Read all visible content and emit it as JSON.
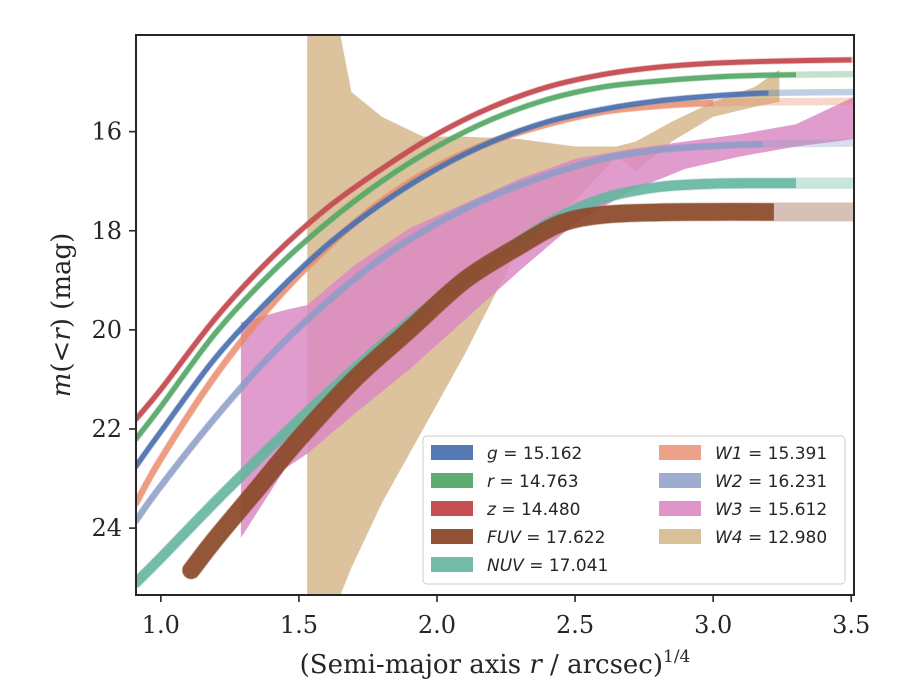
{
  "chart_data": {
    "type": "line",
    "xlabel_main": "(Semi-major axis ",
    "xlabel_r": "r",
    "xlabel_unit": " / arcsec)",
    "xlabel_exp": "1/4",
    "ylabel_main": "m",
    "ylabel_mid": "(<",
    "ylabel_r": "r",
    "ylabel_end": ") (mag)",
    "xlim": [
      0.91,
      3.51
    ],
    "ylim": [
      25.35,
      14.05
    ],
    "y_inverted": true,
    "grid": false,
    "legend_position": "lower-right",
    "xticks": [
      1.0,
      1.5,
      2.0,
      2.5,
      3.0,
      3.5
    ],
    "xtick_labels": [
      "1.0",
      "1.5",
      "2.0",
      "2.5",
      "3.0",
      "3.5"
    ],
    "yticks": [
      16,
      18,
      20,
      22,
      24
    ],
    "ytick_labels": [
      "16",
      "18",
      "20",
      "22",
      "24"
    ],
    "series": [
      {
        "key": "g",
        "label": "g = 15.162",
        "band": "g",
        "value": "15.162",
        "color": "#4c72b0",
        "width": 0.1,
        "opacity": 0.9,
        "x": [
          0.91,
          1.0,
          1.2,
          1.4,
          1.6,
          1.8,
          2.0,
          2.2,
          2.4,
          2.6,
          2.8,
          3.0,
          3.2,
          3.51
        ],
        "y": [
          22.75,
          22.05,
          20.55,
          19.35,
          18.3,
          17.45,
          16.75,
          16.2,
          15.8,
          15.55,
          15.38,
          15.28,
          15.22,
          15.2
        ],
        "x_faint_from": 3.2
      },
      {
        "key": "r",
        "label": "r = 14.763",
        "band": "r",
        "value": "14.763",
        "color": "#55a868",
        "width": 0.1,
        "opacity": 0.9,
        "x": [
          0.91,
          1.0,
          1.2,
          1.4,
          1.6,
          1.8,
          2.0,
          2.2,
          2.4,
          2.6,
          2.8,
          3.0,
          3.2,
          3.51
        ],
        "y": [
          22.2,
          21.55,
          20.05,
          18.85,
          17.85,
          17.0,
          16.3,
          15.75,
          15.35,
          15.1,
          14.98,
          14.9,
          14.86,
          14.84
        ],
        "x_faint_from": 3.3
      },
      {
        "key": "z",
        "label": "z = 14.480",
        "band": "z",
        "value": "14.480",
        "color": "#c44e52",
        "width": 0.1,
        "opacity": 0.95,
        "x": [
          0.91,
          1.0,
          1.2,
          1.4,
          1.6,
          1.8,
          2.0,
          2.2,
          2.4,
          2.6,
          2.8,
          3.0,
          3.2,
          3.51
        ],
        "y": [
          21.8,
          21.2,
          19.75,
          18.55,
          17.55,
          16.75,
          16.05,
          15.5,
          15.1,
          14.85,
          14.7,
          14.62,
          14.58,
          14.55
        ],
        "x_faint_from": 3.5
      },
      {
        "key": "FUV",
        "label": "FUV = 17.622",
        "band": "FUV",
        "value": "17.622",
        "color": "#8c4a2a",
        "width": 0.35,
        "opacity": 0.9,
        "x": [
          1.11,
          1.2,
          1.35,
          1.5,
          1.7,
          1.9,
          2.1,
          2.3,
          2.45,
          2.6,
          2.8,
          3.0,
          3.2,
          3.51
        ],
        "y": [
          24.85,
          24.2,
          23.2,
          22.2,
          21.0,
          20.0,
          19.0,
          18.3,
          17.85,
          17.68,
          17.63,
          17.62,
          17.62,
          17.62
        ],
        "x_faint_from": 3.22
      },
      {
        "key": "NUV",
        "label": "NUV = 17.041",
        "band": "NUV",
        "value": "17.041",
        "color": "#64b5a0",
        "width": 0.2,
        "opacity": 0.85,
        "x": [
          0.91,
          1.0,
          1.2,
          1.4,
          1.6,
          1.8,
          2.0,
          2.2,
          2.4,
          2.6,
          2.8,
          3.0,
          3.2,
          3.51
        ],
        "y": [
          25.1,
          24.6,
          23.45,
          22.35,
          21.3,
          20.3,
          19.4,
          18.6,
          17.85,
          17.35,
          17.12,
          17.05,
          17.04,
          17.04
        ],
        "x_faint_from": 3.3
      },
      {
        "key": "W1",
        "label": "W1 = 15.391",
        "band": "W1",
        "value": "15.391",
        "color": "#e8896a",
        "width": 0.12,
        "opacity": 0.75,
        "x": [
          0.91,
          1.0,
          1.2,
          1.4,
          1.6,
          1.8,
          2.0,
          2.2,
          2.4,
          2.6,
          2.8,
          3.0,
          3.2,
          3.51
        ],
        "y": [
          23.5,
          22.6,
          20.9,
          19.5,
          18.35,
          17.4,
          16.7,
          16.2,
          15.85,
          15.6,
          15.48,
          15.42,
          15.4,
          15.39
        ],
        "x_faint_from": 3.0
      },
      {
        "key": "W2",
        "label": "W2 = 16.231",
        "band": "W2",
        "value": "16.231",
        "color": "#8c9dc7",
        "width": 0.12,
        "opacity": 0.8,
        "x": [
          0.91,
          1.0,
          1.2,
          1.4,
          1.6,
          1.8,
          2.0,
          2.2,
          2.4,
          2.6,
          2.8,
          3.0,
          3.2,
          3.51
        ],
        "y": [
          23.85,
          23.15,
          21.75,
          20.5,
          19.45,
          18.55,
          17.85,
          17.3,
          16.88,
          16.55,
          16.37,
          16.29,
          16.25,
          16.23
        ],
        "x_faint_from": 3.18
      },
      {
        "key": "W3",
        "label": "W3 = 15.612",
        "band": "W3",
        "value": "15.612",
        "color": "#da8bc3",
        "opacity": 0.85,
        "x_band": [
          1.29,
          1.45,
          1.53,
          1.7,
          1.9,
          2.1,
          2.3,
          2.5,
          2.7,
          2.9,
          3.1,
          3.3,
          3.51
        ],
        "y_low": [
          19.85,
          19.6,
          19.5,
          18.7,
          17.95,
          17.45,
          16.95,
          16.55,
          16.35,
          16.2,
          16.05,
          15.85,
          15.3
        ],
        "y_high": [
          24.2,
          22.8,
          22.5,
          21.7,
          20.8,
          19.8,
          18.8,
          17.85,
          17.2,
          16.75,
          16.5,
          16.3,
          16.15
        ]
      },
      {
        "key": "W4",
        "label": "W4 = 12.980",
        "band": "W4",
        "value": "12.980",
        "color": "#d8bd94",
        "opacity": 0.9,
        "x_band": [
          1.53,
          1.6,
          1.65,
          1.69,
          1.8,
          1.95,
          2.1,
          2.3,
          2.5,
          2.65,
          2.72,
          2.85,
          3.0,
          3.15,
          3.24
        ],
        "y_low": [
          14.05,
          14.05,
          14.05,
          15.2,
          15.7,
          16.1,
          16.1,
          16.15,
          16.3,
          16.3,
          16.2,
          15.8,
          15.4,
          15.1,
          14.75
        ],
        "y_high": [
          25.35,
          25.35,
          25.35,
          24.8,
          23.5,
          22.0,
          20.5,
          18.3,
          17.4,
          16.5,
          16.8,
          16.2,
          15.7,
          15.5,
          15.4
        ]
      }
    ],
    "legend_columns": [
      [
        "g",
        "r",
        "z",
        "FUV",
        "NUV"
      ],
      [
        "W1",
        "W2",
        "W3",
        "W4"
      ]
    ]
  }
}
